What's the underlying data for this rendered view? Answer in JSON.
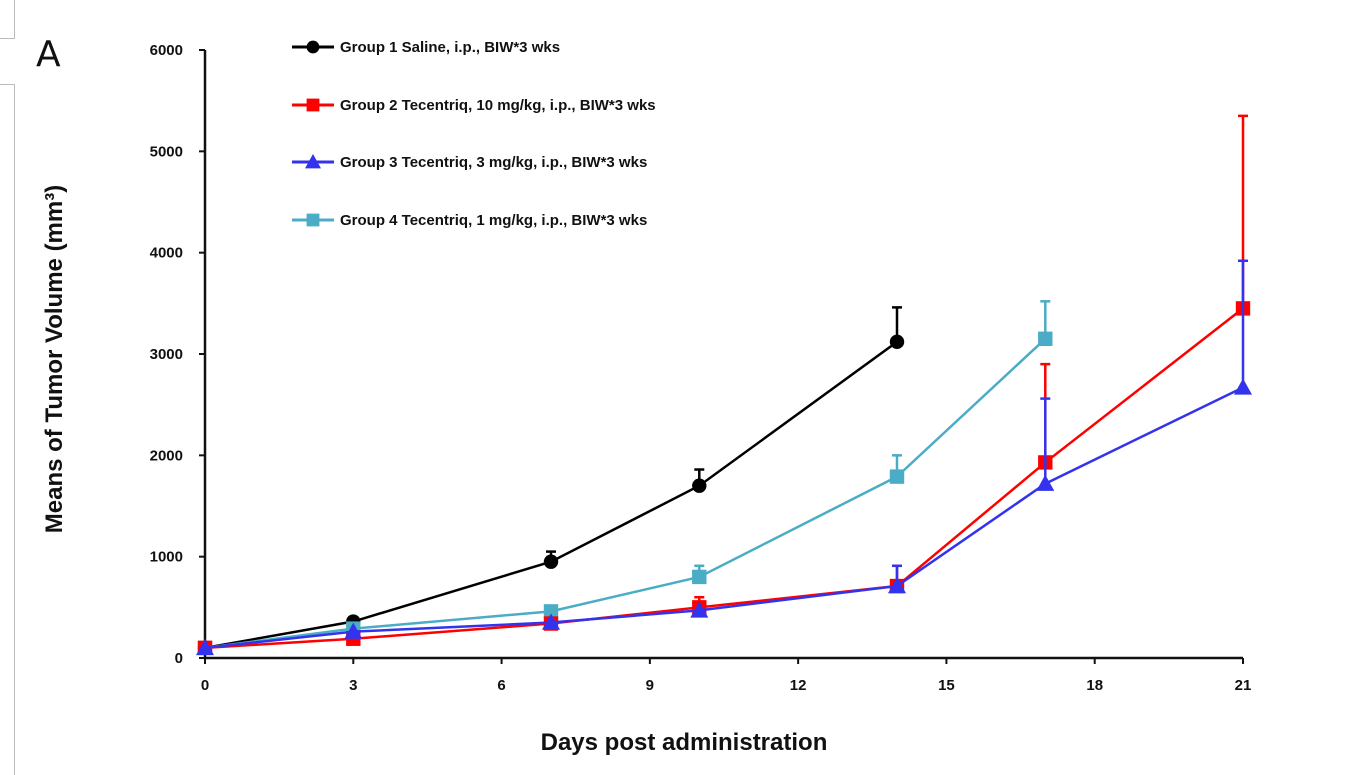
{
  "panel_label": "A",
  "chart_data": {
    "type": "line",
    "title": "",
    "xlabel": "Days post administration",
    "ylabel": "Means of Tumor Volume (mm³)",
    "xlim": [
      0,
      21
    ],
    "ylim": [
      0,
      6000
    ],
    "xticks": [
      0,
      3,
      6,
      9,
      12,
      15,
      18,
      21
    ],
    "yticks": [
      0,
      1000,
      2000,
      3000,
      4000,
      5000,
      6000
    ],
    "grid": false,
    "legend_position": "top-left",
    "series": [
      {
        "name": "Group 1 Saline, i.p., BIW*3 wks",
        "color": "#000000",
        "marker": "circle",
        "x": [
          0,
          3,
          7,
          10,
          14
        ],
        "y": [
          100,
          360,
          950,
          1700,
          3120
        ],
        "error": [
          0,
          0,
          100,
          160,
          340
        ]
      },
      {
        "name": "Group 2 Tecentriq, 10 mg/kg, i.p., BIW*3 wks",
        "color": "#ff0000",
        "marker": "square",
        "x": [
          0,
          3,
          7,
          10,
          14,
          17,
          21
        ],
        "y": [
          100,
          190,
          340,
          500,
          710,
          1930,
          3450
        ],
        "error": [
          0,
          0,
          0,
          100,
          200,
          970,
          1900
        ]
      },
      {
        "name": "Group 3 Tecentriq, 3 mg/kg, i.p., BIW*3 wks",
        "color": "#3333ee",
        "marker": "triangle",
        "x": [
          0,
          3,
          7,
          10,
          14,
          17,
          21
        ],
        "y": [
          100,
          260,
          350,
          470,
          710,
          1720,
          2670
        ],
        "error": [
          0,
          0,
          0,
          0,
          200,
          840,
          1250
        ]
      },
      {
        "name": "Group 4 Tecentriq, 1 mg/kg, i.p., BIW*3 wks",
        "color": "#4bacc6",
        "marker": "square",
        "x": [
          0,
          3,
          7,
          10,
          14,
          17
        ],
        "y": [
          100,
          290,
          460,
          800,
          1790,
          3150
        ],
        "error": [
          0,
          0,
          0,
          110,
          210,
          370
        ]
      }
    ]
  }
}
